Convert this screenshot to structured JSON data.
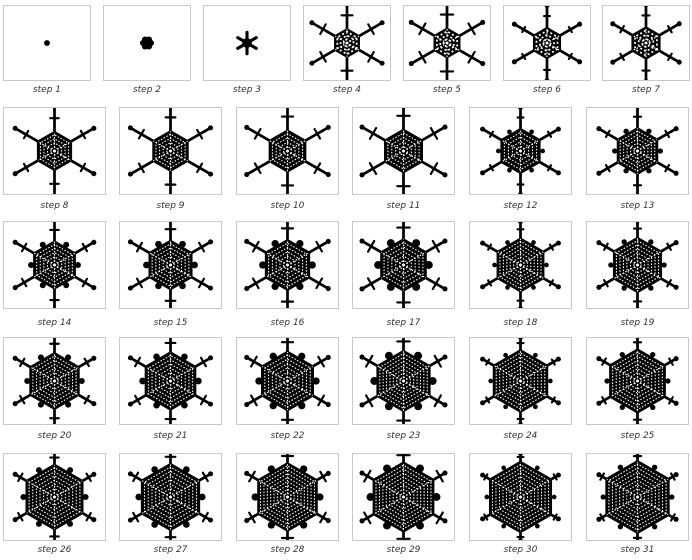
{
  "figure": {
    "colors": {
      "ink": "#000000",
      "paper": "#ffffff",
      "frame": "#c9c9c9"
    },
    "panels": [
      {
        "label": "step 1"
      },
      {
        "label": "step 2"
      },
      {
        "label": "step 3"
      },
      {
        "label": "step 4"
      },
      {
        "label": "step 5"
      },
      {
        "label": "step 6"
      },
      {
        "label": "step 7"
      },
      {
        "label": "step 8"
      },
      {
        "label": "step 9"
      },
      {
        "label": "step 10"
      },
      {
        "label": "step 11"
      },
      {
        "label": "step 12"
      },
      {
        "label": "step 13"
      },
      {
        "label": "step 14"
      },
      {
        "label": "step 15"
      },
      {
        "label": "step 16"
      },
      {
        "label": "step 17"
      },
      {
        "label": "step 18"
      },
      {
        "label": "step 19"
      },
      {
        "label": "step 20"
      },
      {
        "label": "step 21"
      },
      {
        "label": "step 22"
      },
      {
        "label": "step 23"
      },
      {
        "label": "step 24"
      },
      {
        "label": "step 25"
      },
      {
        "label": "step 26"
      },
      {
        "label": "step 27"
      },
      {
        "label": "step 28"
      },
      {
        "label": "step 29"
      },
      {
        "label": "step 30"
      },
      {
        "label": "step 31"
      }
    ]
  }
}
